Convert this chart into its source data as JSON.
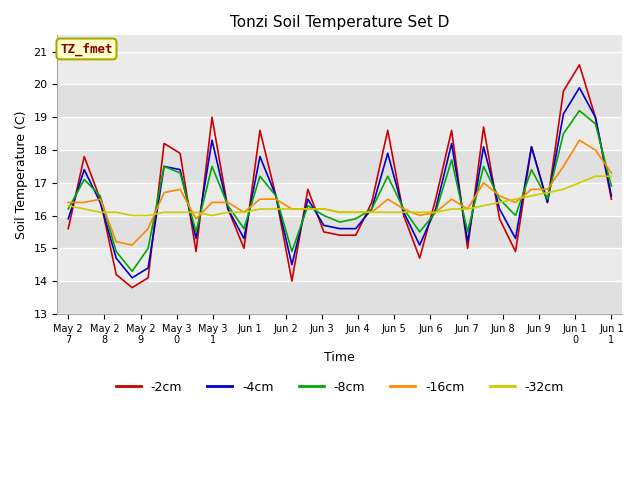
{
  "title": "Tonzi Soil Temperature Set D",
  "xlabel": "Time",
  "ylabel": "Soil Temperature (C)",
  "annotation": "TZ_fmet",
  "annotation_facecolor": "#ffffcc",
  "annotation_edgecolor": "#aaa800",
  "annotation_textcolor": "#880000",
  "ylim": [
    13.0,
    21.5
  ],
  "yticks": [
    13.0,
    14.0,
    15.0,
    16.0,
    17.0,
    18.0,
    19.0,
    20.0,
    21.0
  ],
  "bg_color": "#e8e8e8",
  "bg_stripe_color": "#d8d8d8",
  "line_colors": [
    "#cc0000",
    "#0000cc",
    "#00aa00",
    "#ff8800",
    "#cccc00"
  ],
  "line_labels": [
    "-2cm",
    "-4cm",
    "-8cm",
    "-16cm",
    "-32cm"
  ],
  "x_labels": [
    "May 2\n7",
    "May 2\n8",
    "May 2\n9",
    "May 3\n0",
    "May 3\n1",
    "Jun 1",
    "Jun 2",
    "Jun 3",
    "Jun 4",
    "Jun 5",
    "Jun 6",
    "Jun 7",
    "Jun 8",
    "Jun 9",
    "Jun 1\n0",
    "Jun 1\n1"
  ],
  "series": {
    "-2cm": [
      15.6,
      17.8,
      16.5,
      14.2,
      13.8,
      14.1,
      18.2,
      17.9,
      14.9,
      19.0,
      16.2,
      15.0,
      18.6,
      16.6,
      14.0,
      16.8,
      15.5,
      15.4,
      15.4,
      16.4,
      18.6,
      16.0,
      14.7,
      16.5,
      18.6,
      15.0,
      18.7,
      15.9,
      14.9,
      18.1,
      16.4,
      19.8,
      20.6,
      19.0,
      16.5
    ],
    "-4cm": [
      15.9,
      17.4,
      16.4,
      14.7,
      14.1,
      14.4,
      17.5,
      17.4,
      15.3,
      18.3,
      16.2,
      15.3,
      17.8,
      16.6,
      14.5,
      16.5,
      15.7,
      15.6,
      15.6,
      16.2,
      17.9,
      16.1,
      15.1,
      16.2,
      18.2,
      15.2,
      18.1,
      16.2,
      15.3,
      18.1,
      16.4,
      19.1,
      19.9,
      19.0,
      16.6
    ],
    "-8cm": [
      16.2,
      17.1,
      16.6,
      14.9,
      14.3,
      15.0,
      17.5,
      17.3,
      15.5,
      17.5,
      16.3,
      15.6,
      17.2,
      16.6,
      14.9,
      16.3,
      16.0,
      15.8,
      15.9,
      16.2,
      17.2,
      16.2,
      15.5,
      16.1,
      17.7,
      15.5,
      17.5,
      16.5,
      16.0,
      17.4,
      16.5,
      18.5,
      19.2,
      18.8,
      16.9
    ],
    "-16cm": [
      16.4,
      16.4,
      16.5,
      15.2,
      15.1,
      15.6,
      16.7,
      16.8,
      15.9,
      16.4,
      16.4,
      16.1,
      16.5,
      16.5,
      16.2,
      16.2,
      16.2,
      16.1,
      16.1,
      16.1,
      16.5,
      16.2,
      16.0,
      16.1,
      16.5,
      16.2,
      17.0,
      16.6,
      16.4,
      16.8,
      16.8,
      17.5,
      18.3,
      18.0,
      17.3
    ],
    "-32cm": [
      16.3,
      16.2,
      16.1,
      16.1,
      16.0,
      16.0,
      16.1,
      16.1,
      16.1,
      16.0,
      16.1,
      16.1,
      16.2,
      16.2,
      16.2,
      16.2,
      16.2,
      16.1,
      16.1,
      16.1,
      16.1,
      16.1,
      16.1,
      16.1,
      16.2,
      16.2,
      16.3,
      16.4,
      16.5,
      16.6,
      16.7,
      16.8,
      17.0,
      17.2,
      17.2
    ]
  }
}
